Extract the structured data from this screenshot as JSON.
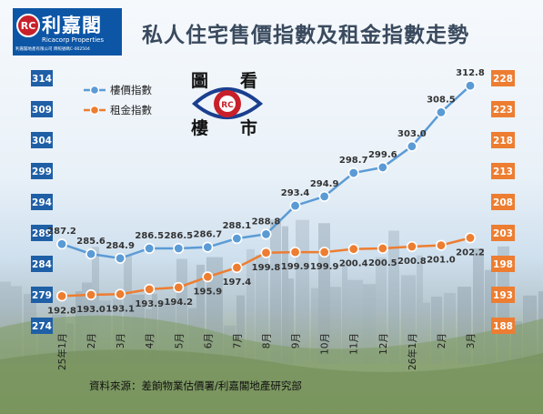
{
  "brand": {
    "name": "利嘉閣",
    "english": "Ricacorp Properties",
    "license": "利嘉閣地產有限公司 牌照號碼C-002504"
  },
  "title": "私人住宅售價指數及租金指數走勢",
  "emblem": {
    "chars": [
      "圖",
      "看",
      "樓",
      "市"
    ]
  },
  "source": "資料來源：差餉物業估價署/利嘉閣地產研究部",
  "colors": {
    "price": "#5b9bd5",
    "rent": "#ed7d31",
    "left_axis": "#1f5fa6",
    "right_axis": "#ed7d31"
  },
  "chart_data": {
    "type": "line",
    "categories": [
      "25年1月",
      "2月",
      "3月",
      "4月",
      "5月",
      "6月",
      "7月",
      "8月",
      "9月",
      "10月",
      "11月",
      "12月",
      "26年1月",
      "2月",
      "3月"
    ],
    "series": [
      {
        "name": "樓價指數",
        "axis": "left",
        "values": [
          287.2,
          285.6,
          284.9,
          286.5,
          286.5,
          286.7,
          288.1,
          288.8,
          293.4,
          294.9,
          298.7,
          299.6,
          303.0,
          308.5,
          312.8
        ],
        "labels": [
          "287.2",
          "285.6",
          "284.9",
          "286.5",
          "286.5",
          "286.7",
          "288.1",
          "288.8",
          "293.4",
          "294.9",
          "298.7",
          "299.6",
          "303.0",
          "308.5",
          "312.8"
        ]
      },
      {
        "name": "租金指數",
        "axis": "right",
        "values": [
          192.8,
          193.0,
          193.1,
          193.9,
          194.2,
          195.9,
          197.4,
          199.8,
          199.9,
          199.9,
          200.4,
          200.5,
          200.8,
          201.0,
          202.2
        ],
        "labels": [
          "192.8",
          "193.0",
          "193.1",
          "193.9",
          "194.2",
          "195.9",
          "197.4",
          "199.8",
          "199.9",
          "199.9",
          "200.4",
          "200.5",
          "200.8",
          "201.0",
          "202.2"
        ]
      }
    ],
    "y_left": {
      "range": [
        274,
        314
      ],
      "ticks": [
        "274",
        "279",
        "284",
        "289",
        "294",
        "299",
        "304",
        "309",
        "314"
      ]
    },
    "y_right": {
      "range": [
        188,
        228
      ],
      "ticks": [
        "188",
        "193",
        "198",
        "203",
        "208",
        "213",
        "218",
        "223",
        "228"
      ]
    },
    "legend": "top-left",
    "grid": false
  }
}
